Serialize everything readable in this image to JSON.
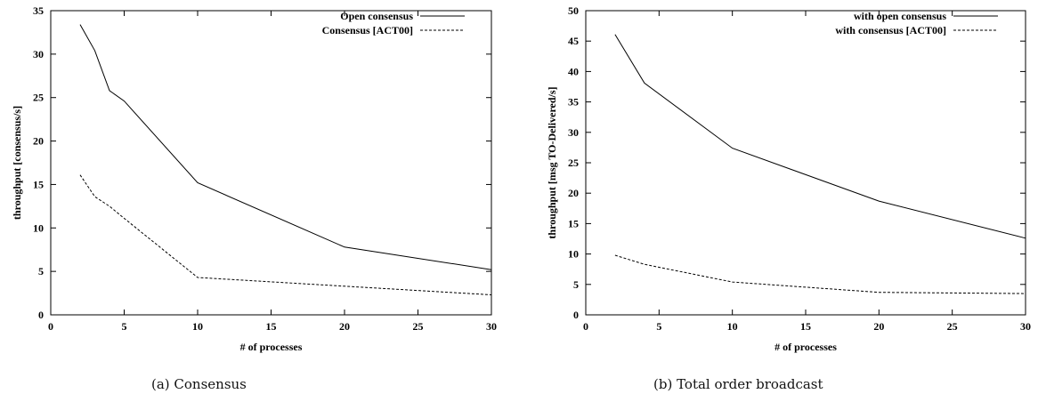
{
  "chart_data": [
    {
      "type": "line",
      "xlabel": "# of processes",
      "ylabel": "throughput [consensus/s]",
      "xlim": [
        0,
        30
      ],
      "ylim": [
        0,
        35
      ],
      "xticks": [
        0,
        5,
        10,
        15,
        20,
        25,
        30
      ],
      "yticks": [
        0,
        5,
        10,
        15,
        20,
        25,
        30,
        35
      ],
      "grid": false,
      "legend_position": "top-right",
      "series": [
        {
          "name": "Open consensus",
          "style": "solid",
          "x": [
            2,
            3,
            4,
            5,
            10,
            20,
            30
          ],
          "y": [
            33.4,
            30.4,
            25.8,
            24.6,
            15.2,
            7.8,
            5.2
          ]
        },
        {
          "name": "Consensus [ACT00]",
          "style": "dashed",
          "x": [
            2,
            3,
            4,
            5,
            10,
            20,
            30
          ],
          "y": [
            16.1,
            13.6,
            12.5,
            11.1,
            4.3,
            3.3,
            2.3
          ]
        }
      ]
    },
    {
      "type": "line",
      "xlabel": "# of processes",
      "ylabel": "throughput [msg TO-Delivered/s]",
      "xlim": [
        0,
        30
      ],
      "ylim": [
        0,
        50
      ],
      "xticks": [
        0,
        5,
        10,
        15,
        20,
        25,
        30
      ],
      "yticks": [
        0,
        5,
        10,
        15,
        20,
        25,
        30,
        35,
        40,
        45,
        50
      ],
      "grid": false,
      "legend_position": "top-right",
      "series": [
        {
          "name": "with open consensus",
          "style": "solid",
          "x": [
            2,
            4,
            10,
            20,
            30
          ],
          "y": [
            46.1,
            38.1,
            27.4,
            18.7,
            12.6
          ]
        },
        {
          "name": "with consensus [ACT00]",
          "style": "dashed",
          "x": [
            2,
            4,
            10,
            20,
            30
          ],
          "y": [
            9.8,
            8.3,
            5.4,
            3.7,
            3.5
          ]
        }
      ]
    }
  ],
  "captions": [
    "(a) Consensus",
    "(b) Total order broadcast"
  ]
}
